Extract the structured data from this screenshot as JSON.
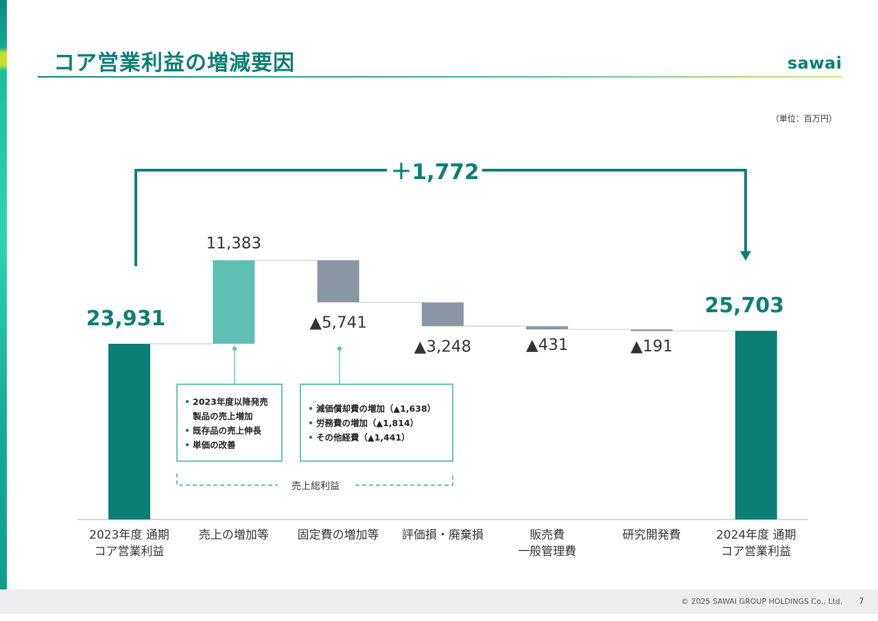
{
  "slide": {
    "title": "コア営業利益の増減要因",
    "logo": "sawai",
    "unit": "（単位：百万円）",
    "copyright": "© 2025 SAWAI GROUP HOLDINGS Co., Ltd.",
    "page_number": "7"
  },
  "colors": {
    "total": "#0b7f76",
    "increase": "#5fbfb2",
    "decrease": "#8a96a3",
    "accent": "#0b7f76"
  },
  "chart_data": {
    "type": "bar",
    "subtype": "waterfall",
    "title": "",
    "xlabel": "",
    "ylabel": "",
    "ylim": [
      0,
      26000
    ],
    "categories": [
      [
        "2023年度 通期",
        "コア営業利益"
      ],
      [
        "売上の増加等"
      ],
      [
        "固定費の増加等"
      ],
      [
        "評価損・廃棄損"
      ],
      [
        "販売費",
        "一般管理費"
      ],
      [
        "研究開発費"
      ],
      [
        "2024年度 通期",
        "コア営業利益"
      ]
    ],
    "steps": [
      {
        "kind": "total",
        "value": 23931,
        "label": "23,931"
      },
      {
        "kind": "increase",
        "value": 11383,
        "label": "11,383"
      },
      {
        "kind": "decrease",
        "value": -5741,
        "label": "▲5,741"
      },
      {
        "kind": "decrease",
        "value": -3248,
        "label": "▲3,248"
      },
      {
        "kind": "decrease",
        "value": -431,
        "label": "▲431"
      },
      {
        "kind": "decrease",
        "value": -191,
        "label": "▲191"
      },
      {
        "kind": "total",
        "value": 25703,
        "label": "25,703"
      }
    ],
    "bracket_label": "＋1,772",
    "group_label": "売上総利益"
  },
  "notes": {
    "sales": [
      "2023年度以降発売",
      "製品の売上増加",
      "既存品の売上伸長",
      "単価の改善"
    ],
    "fixed_costs": [
      "減価償却費の増加（▲1,638）",
      "労務費の増加（▲1,814）",
      "その他経費（▲1,441）"
    ]
  }
}
